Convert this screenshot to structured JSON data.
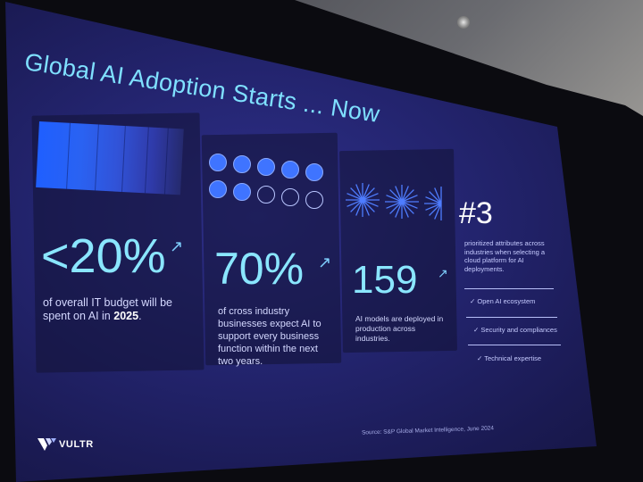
{
  "slide": {
    "title": "Global AI Adoption Starts ... Now",
    "stats": [
      {
        "value": "<20%",
        "description": "of overall IT budget will be spent on AI in",
        "description_bold": "2025",
        "description_end": "."
      },
      {
        "value": "70%",
        "description": "of cross industry businesses expect AI to support every business function within the next two years."
      },
      {
        "value": "159",
        "description": "AI models are deployed in production across industries."
      }
    ],
    "rank": {
      "value": "#3",
      "description": "prioritized attributes across industries when selecting a cloud platform for AI deployments.",
      "items": [
        "Open AI ecosystem",
        "Security and compliances",
        "Technical expertise"
      ]
    },
    "icons": {
      "circles_filled": 7,
      "circles_outline": 3,
      "arrow": "↗",
      "check": "✓"
    },
    "source": "Source: S&P Global Market Intelligence, June 2024",
    "brand": "VULTR",
    "colors": {
      "accent": "#8ae6ff",
      "title": "#7fe0ff",
      "bar": "#2a62f2",
      "background": "#23246e"
    }
  }
}
